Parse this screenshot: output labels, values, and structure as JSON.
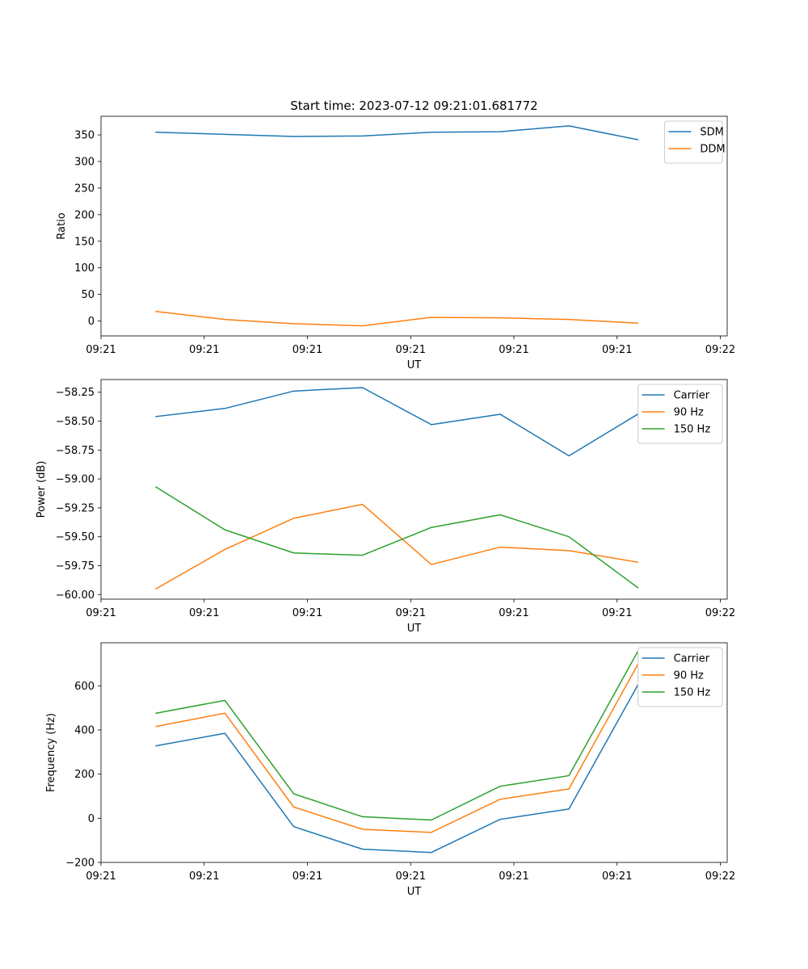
{
  "figure_title": "Start time: 2023-07-12 09:21:01.681772",
  "chart_data": [
    {
      "type": "line",
      "title": "Start time: 2023-07-12 09:21:01.681772",
      "xlabel": "UT",
      "ylabel": "Ratio",
      "x": [
        1,
        2,
        3,
        4,
        5,
        6,
        7,
        8
      ],
      "xlim": [
        0.2,
        9.3
      ],
      "x_ticks": [
        0.2,
        1.7,
        3.2,
        4.7,
        6.2,
        7.7,
        9.2
      ],
      "x_tick_labels": [
        "09:21",
        "09:21",
        "09:21",
        "09:21",
        "09:21",
        "09:21",
        "09:22"
      ],
      "ylim": [
        -28,
        385
      ],
      "y_ticks": [
        0,
        50,
        100,
        150,
        200,
        250,
        300,
        350
      ],
      "y_tick_labels": [
        "0",
        "50",
        "100",
        "150",
        "200",
        "250",
        "300",
        "350"
      ],
      "legend": "top-right",
      "series": [
        {
          "name": "SDM",
          "color": "#1f77b4",
          "values": [
            355,
            351,
            347,
            348,
            355,
            356,
            367,
            341
          ]
        },
        {
          "name": "DDM",
          "color": "#ff7f0e",
          "values": [
            18,
            3,
            -5,
            -9,
            7,
            6,
            3,
            -4
          ]
        }
      ]
    },
    {
      "type": "line",
      "xlabel": "UT",
      "ylabel": "Power (dB)",
      "x": [
        1,
        2,
        3,
        4,
        5,
        6,
        7,
        8
      ],
      "xlim": [
        0.2,
        9.3
      ],
      "x_ticks": [
        0.2,
        1.7,
        3.2,
        4.7,
        6.2,
        7.7,
        9.2
      ],
      "x_tick_labels": [
        "09:21",
        "09:21",
        "09:21",
        "09:21",
        "09:21",
        "09:21",
        "09:22"
      ],
      "ylim": [
        -60.04,
        -58.14
      ],
      "y_ticks": [
        -60.0,
        -59.75,
        -59.5,
        -59.25,
        -59.0,
        -58.75,
        -58.5,
        -58.25
      ],
      "y_tick_labels": [
        "−60.00",
        "−59.75",
        "−59.50",
        "−59.25",
        "−59.00",
        "−58.75",
        "−58.50",
        "−58.25"
      ],
      "legend": "top-right",
      "series": [
        {
          "name": "Carrier",
          "color": "#1f77b4",
          "values": [
            -58.46,
            -58.39,
            -58.24,
            -58.21,
            -58.53,
            -58.44,
            -58.8,
            -58.44
          ]
        },
        {
          "name": "90 Hz",
          "color": "#ff7f0e",
          "values": [
            -59.95,
            -59.61,
            -59.34,
            -59.22,
            -59.74,
            -59.59,
            -59.62,
            -59.72
          ]
        },
        {
          "name": "150 Hz",
          "color": "#2ca02c",
          "values": [
            -59.07,
            -59.44,
            -59.64,
            -59.66,
            -59.42,
            -59.31,
            -59.5,
            -59.94
          ]
        }
      ]
    },
    {
      "type": "line",
      "xlabel": "UT",
      "ylabel": "Frequency (Hz)",
      "x": [
        1,
        2,
        3,
        4,
        5,
        6,
        7,
        8
      ],
      "xlim": [
        0.2,
        9.3
      ],
      "x_ticks": [
        0.2,
        1.7,
        3.2,
        4.7,
        6.2,
        7.7,
        9.2
      ],
      "x_tick_labels": [
        "09:21",
        "09:21",
        "09:21",
        "09:21",
        "09:21",
        "09:21",
        "09:22"
      ],
      "ylim": [
        -200,
        795
      ],
      "y_ticks": [
        -200,
        0,
        200,
        400,
        600
      ],
      "y_tick_labels": [
        "−200",
        "0",
        "200",
        "400",
        "600"
      ],
      "legend": "top-right",
      "series": [
        {
          "name": "Carrier",
          "color": "#1f77b4",
          "values": [
            328,
            385,
            -38,
            -140,
            -155,
            -5,
            42,
            603
          ]
        },
        {
          "name": "90 Hz",
          "color": "#ff7f0e",
          "values": [
            416,
            476,
            51,
            -50,
            -64,
            86,
            133,
            696
          ]
        },
        {
          "name": "150 Hz",
          "color": "#2ca02c",
          "values": [
            476,
            534,
            111,
            7,
            -8,
            145,
            193,
            755
          ]
        }
      ]
    }
  ]
}
